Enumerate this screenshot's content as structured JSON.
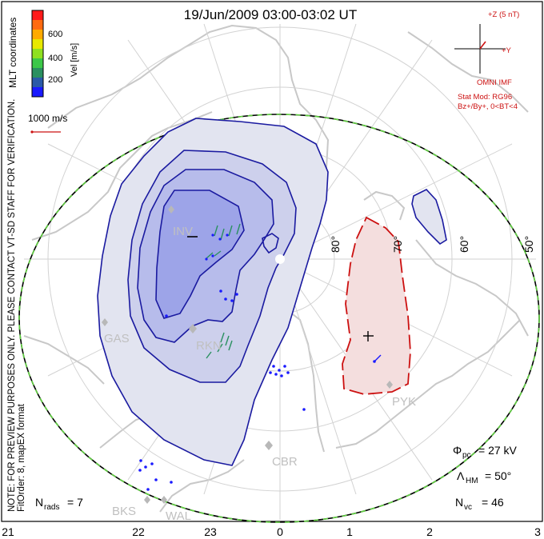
{
  "title": "19/Jun/2009 03:00-03:02 UT",
  "coord_label": "MLT coordinates",
  "colorbar": {
    "title": "Vel [m/s]",
    "ticks": [
      "600",
      "400",
      "200"
    ],
    "colors": [
      "#ff1a1a",
      "#ff6a10",
      "#ffaa00",
      "#e8e800",
      "#8fe020",
      "#3cc848",
      "#2a9060",
      "#2a5aa8",
      "#1a1aff"
    ]
  },
  "vector_scale": "1000 m/s",
  "imf": {
    "z_label": "+Z (5 nT)",
    "y_label": "+Y",
    "source": "OMNI IMF",
    "model": "Stat Mod: RG96",
    "condition": "Bz+/By+, 0<BT<4"
  },
  "side_notes": {
    "preview": "NOTE: FOR PREVIEW PURPOSES ONLY. PLEASE CONTACT VT-SD STAFF FOR VERIFICATION.",
    "fit": "FitOrder: 8, mapEX format"
  },
  "latitude_labels": [
    "80°",
    "70°",
    "60°",
    "50°"
  ],
  "mlt_labels": [
    "21",
    "22",
    "23",
    "0",
    "1",
    "2",
    "3"
  ],
  "stations": [
    "INV",
    "GAS",
    "RKN",
    "PYK",
    "CBR",
    "BKS",
    "WAL"
  ],
  "stats": {
    "nrads_label": "N",
    "nrads_sub": "rads",
    "nrads_value": "= 7",
    "phi_label": "Φ",
    "phi_sub": "pc",
    "phi_value": "= 27 kV",
    "lambda_label": "Λ",
    "lambda_sub": "HM",
    "lambda_value": "= 50°",
    "nvc_label": "N",
    "nvc_sub": "vc",
    "nvc_value": "= 46"
  },
  "contour_colors": {
    "negative": "#1a1aa0",
    "positive": "#cc1010",
    "hm_boundary": "#60d040"
  }
}
